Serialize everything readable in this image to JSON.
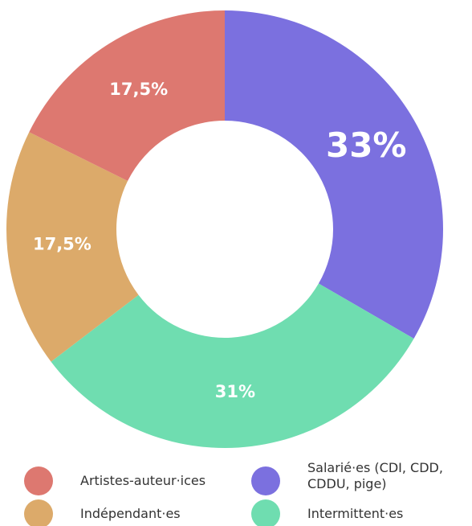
{
  "chart_data": {
    "type": "donut",
    "categories": [
      "Salarié·es (CDI, CDD, CDDU, pige)",
      "Intermittent·es",
      "Indépendant·es",
      "Artistes-auteur·ices"
    ],
    "values": [
      33,
      31,
      17.5,
      17.5
    ],
    "value_labels": [
      "33%",
      "31%",
      "17,5%",
      "17,5%"
    ],
    "colors": [
      "#7b70df",
      "#6fddb0",
      "#dcaa6a",
      "#dd7870"
    ],
    "legend": "bottom"
  }
}
